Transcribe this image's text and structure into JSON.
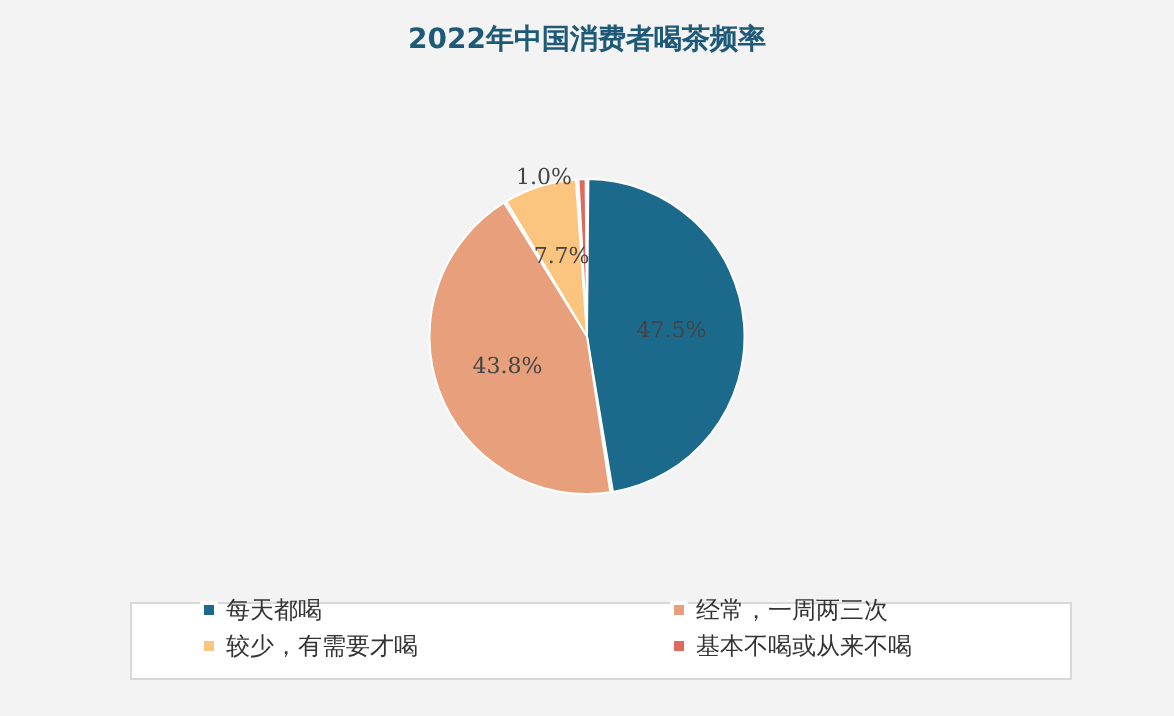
{
  "chart_data": {
    "type": "pie",
    "title": "2022年中国消费者喝茶频率",
    "categories": [
      "每天都喝",
      "经常，一周两三次",
      "较少，有需要才喝",
      "基本不喝或从来不喝"
    ],
    "values": [
      47.5,
      43.8,
      7.7,
      1.0
    ],
    "colors": [
      "#1b6a8c",
      "#e79f7c",
      "#fcc57f",
      "#de6a5e"
    ],
    "value_labels": [
      "47.5%",
      "43.8%",
      "7.7%",
      "1.0%"
    ],
    "legend": "bottom"
  }
}
